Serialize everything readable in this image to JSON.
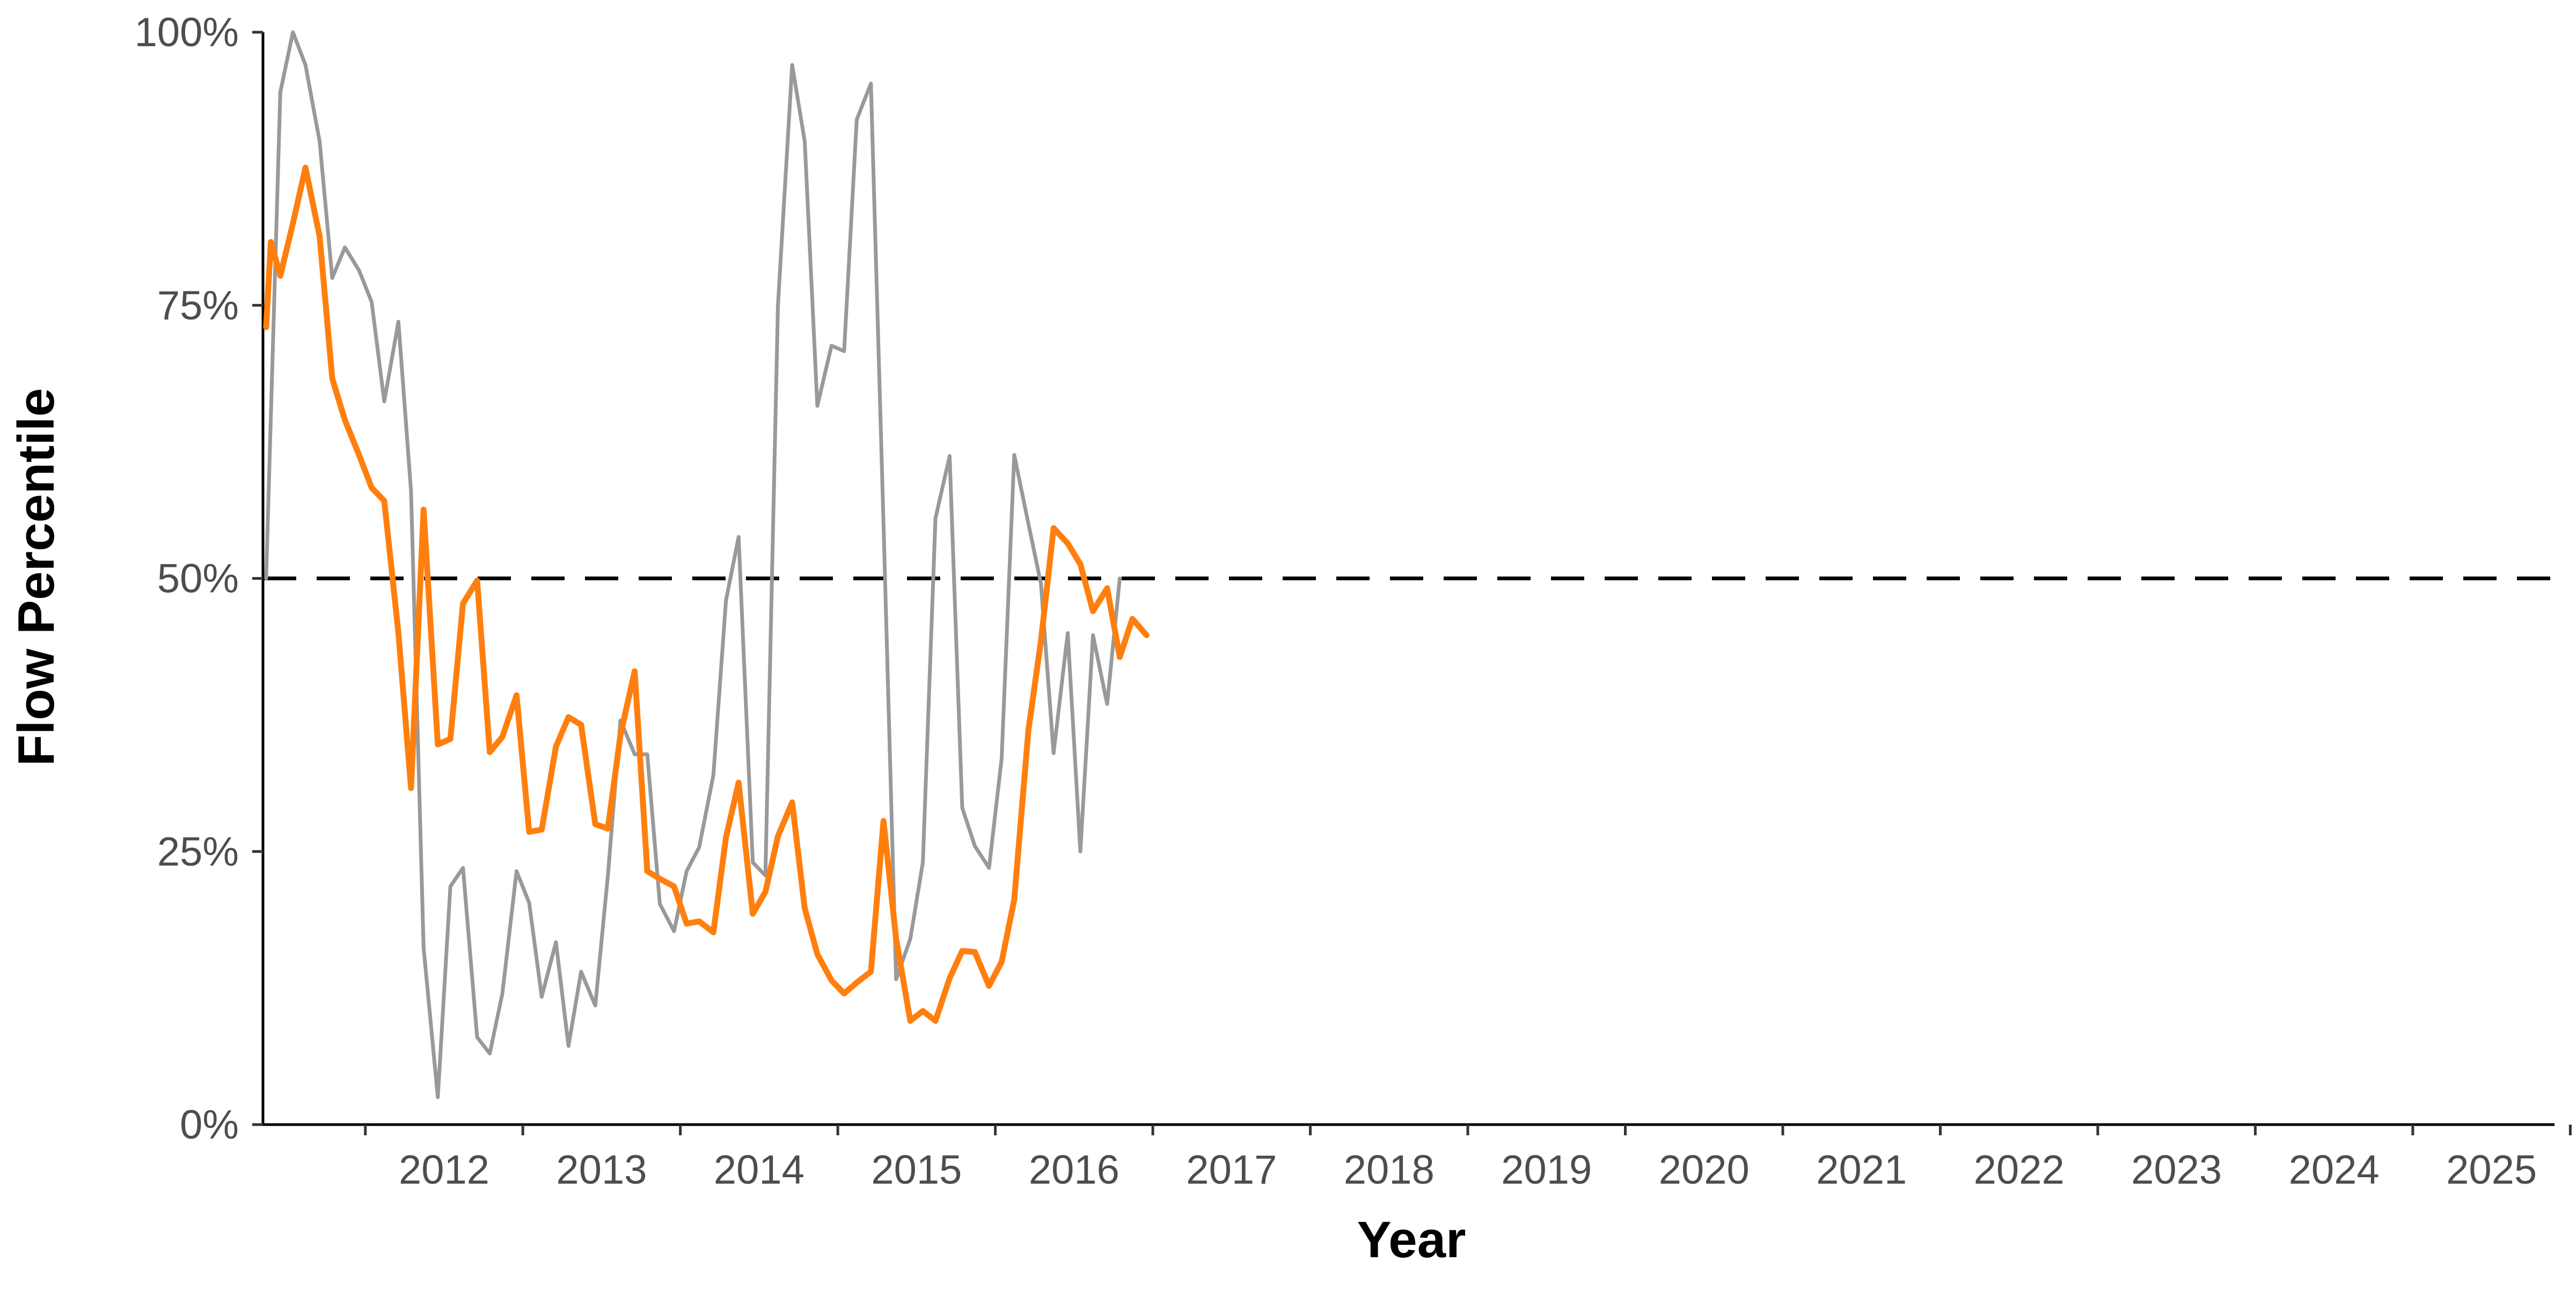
{
  "chart_data": {
    "type": "line",
    "xlabel": "Year",
    "ylabel": "Flow Percentile",
    "xlim": [
      2011.35,
      2025.9
    ],
    "ylim": [
      0,
      100
    ],
    "x_ticks": [
      "2012",
      "2013",
      "2014",
      "2015",
      "2016",
      "2017",
      "2018",
      "2019",
      "2020",
      "2021",
      "2022",
      "2023",
      "2024",
      "2025"
    ],
    "y_ticks": [
      "0%",
      "25%",
      "50%",
      "75%",
      "100%"
    ],
    "reference_line": {
      "value": 50,
      "style": "dashed",
      "color": "#000000"
    },
    "grid": false,
    "legend": "none",
    "series": [
      {
        "color": "#999999",
        "points": [
          [
            2011.37,
            50
          ],
          [
            2011.46,
            94.5
          ],
          [
            2011.54,
            100
          ],
          [
            2011.62,
            97
          ],
          [
            2011.71,
            90
          ],
          [
            2011.79,
            77.5
          ],
          [
            2011.87,
            80.3
          ],
          [
            2011.96,
            78.2
          ],
          [
            2012.04,
            75.3
          ],
          [
            2012.12,
            66.2
          ],
          [
            2012.21,
            73.5
          ],
          [
            2012.29,
            58
          ],
          [
            2012.37,
            16.2
          ],
          [
            2012.46,
            2.5
          ],
          [
            2012.54,
            21.8
          ],
          [
            2012.62,
            23.5
          ],
          [
            2012.71,
            8
          ],
          [
            2012.79,
            6.5
          ],
          [
            2012.87,
            12
          ],
          [
            2012.96,
            23.2
          ],
          [
            2013.04,
            20.3
          ],
          [
            2013.12,
            11.7
          ],
          [
            2013.21,
            16.7
          ],
          [
            2013.29,
            7.2
          ],
          [
            2013.37,
            14
          ],
          [
            2013.46,
            10.9
          ],
          [
            2013.54,
            22.8
          ],
          [
            2013.62,
            37
          ],
          [
            2013.71,
            33.9
          ],
          [
            2013.79,
            33.9
          ],
          [
            2013.87,
            20.2
          ],
          [
            2013.96,
            17.7
          ],
          [
            2014.04,
            23.2
          ],
          [
            2014.12,
            25.4
          ],
          [
            2014.21,
            32
          ],
          [
            2014.29,
            48
          ],
          [
            2014.37,
            53.8
          ],
          [
            2014.46,
            24
          ],
          [
            2014.54,
            22.8
          ],
          [
            2014.62,
            75
          ],
          [
            2014.71,
            97
          ],
          [
            2014.79,
            90
          ],
          [
            2014.87,
            65.8
          ],
          [
            2014.96,
            71.3
          ],
          [
            2015.04,
            70.8
          ],
          [
            2015.12,
            92
          ],
          [
            2015.21,
            95.3
          ],
          [
            2015.29,
            55
          ],
          [
            2015.37,
            13.3
          ],
          [
            2015.46,
            17
          ],
          [
            2015.54,
            24
          ],
          [
            2015.62,
            55.5
          ],
          [
            2015.71,
            61.2
          ],
          [
            2015.79,
            29
          ],
          [
            2015.87,
            25.5
          ],
          [
            2015.96,
            23.5
          ],
          [
            2016.04,
            33.5
          ],
          [
            2016.12,
            61.3
          ],
          [
            2016.21,
            55
          ],
          [
            2016.29,
            49.5
          ],
          [
            2016.37,
            34
          ],
          [
            2016.46,
            45
          ],
          [
            2016.54,
            25
          ],
          [
            2016.62,
            44.8
          ],
          [
            2016.71,
            38.5
          ],
          [
            2016.79,
            50
          ]
        ]
      },
      {
        "color": "#ff7f0e",
        "points": [
          [
            2011.37,
            73
          ],
          [
            2011.4,
            80.8
          ],
          [
            2011.46,
            77.7
          ],
          [
            2011.54,
            82.5
          ],
          [
            2011.62,
            87.6
          ],
          [
            2011.71,
            81.3
          ],
          [
            2011.79,
            68.3
          ],
          [
            2011.87,
            64.5
          ],
          [
            2011.96,
            61.3
          ],
          [
            2012.04,
            58.3
          ],
          [
            2012.12,
            57.1
          ],
          [
            2012.21,
            45
          ],
          [
            2012.29,
            30.8
          ],
          [
            2012.37,
            56.3
          ],
          [
            2012.46,
            34.8
          ],
          [
            2012.54,
            35.3
          ],
          [
            2012.62,
            47.7
          ],
          [
            2012.71,
            49.8
          ],
          [
            2012.79,
            34.1
          ],
          [
            2012.87,
            35.5
          ],
          [
            2012.96,
            39.3
          ],
          [
            2013.04,
            26.8
          ],
          [
            2013.12,
            27
          ],
          [
            2013.21,
            34.6
          ],
          [
            2013.29,
            37.3
          ],
          [
            2013.37,
            36.6
          ],
          [
            2013.46,
            27.5
          ],
          [
            2013.54,
            27.1
          ],
          [
            2013.62,
            35.7
          ],
          [
            2013.71,
            41.5
          ],
          [
            2013.79,
            23.2
          ],
          [
            2013.87,
            22.5
          ],
          [
            2013.96,
            21.8
          ],
          [
            2014.04,
            18.4
          ],
          [
            2014.12,
            18.6
          ],
          [
            2014.21,
            17.6
          ],
          [
            2014.29,
            26.3
          ],
          [
            2014.37,
            31.3
          ],
          [
            2014.46,
            19.3
          ],
          [
            2014.54,
            21.3
          ],
          [
            2014.62,
            26.4
          ],
          [
            2014.71,
            29.5
          ],
          [
            2014.79,
            19.8
          ],
          [
            2014.87,
            15.6
          ],
          [
            2014.96,
            13.2
          ],
          [
            2015.04,
            12
          ],
          [
            2015.12,
            13
          ],
          [
            2015.21,
            14
          ],
          [
            2015.29,
            27.8
          ],
          [
            2015.37,
            17
          ],
          [
            2015.46,
            9.5
          ],
          [
            2015.54,
            10.4
          ],
          [
            2015.62,
            9.5
          ],
          [
            2015.71,
            13.4
          ],
          [
            2015.79,
            15.9
          ],
          [
            2015.87,
            15.8
          ],
          [
            2015.96,
            12.7
          ],
          [
            2016.04,
            14.9
          ],
          [
            2016.12,
            20.6
          ],
          [
            2016.21,
            36.1
          ],
          [
            2016.29,
            44.3
          ],
          [
            2016.37,
            54.6
          ],
          [
            2016.46,
            53.2
          ],
          [
            2016.54,
            51.3
          ],
          [
            2016.62,
            47
          ],
          [
            2016.71,
            49.1
          ],
          [
            2016.79,
            42.8
          ],
          [
            2016.87,
            46.3
          ],
          [
            2016.96,
            44.8
          ]
        ]
      }
    ]
  }
}
